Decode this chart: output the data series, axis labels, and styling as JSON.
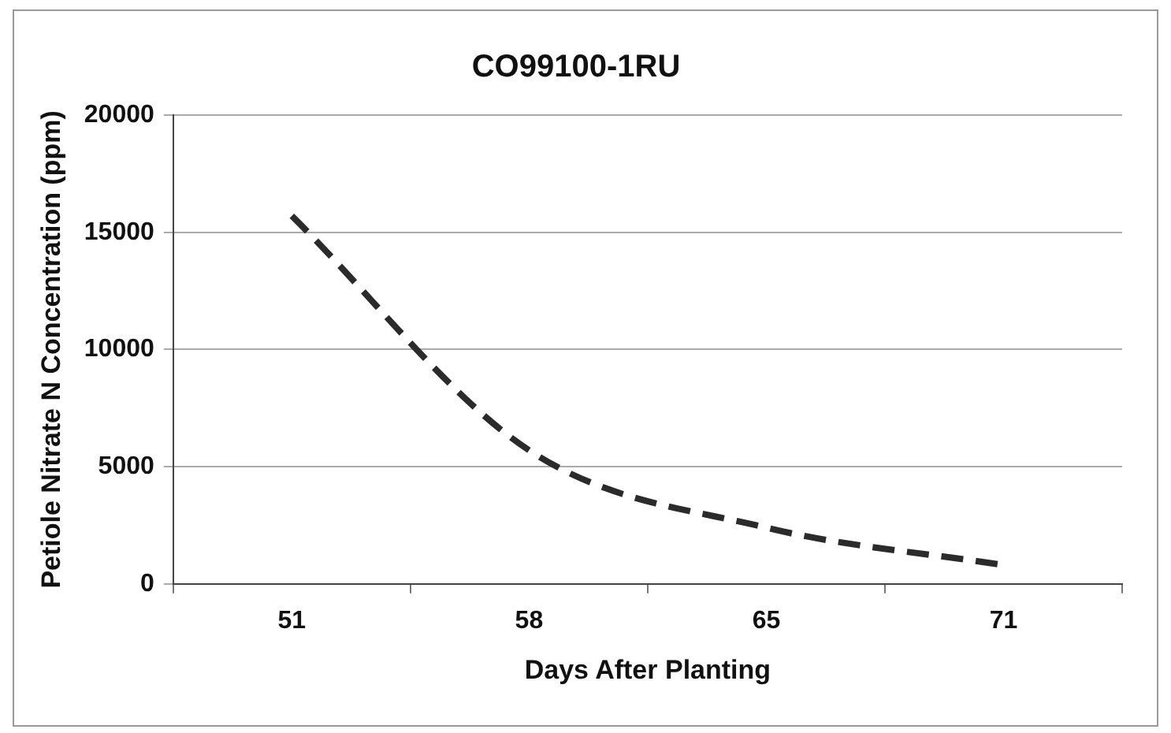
{
  "chart_data": {
    "type": "line",
    "title": "CO99100-1RU",
    "xlabel": "Days After Planting",
    "ylabel": "Petiole Nitrate N Concentration (ppm)",
    "categories": [
      "51",
      "58",
      "65",
      "71"
    ],
    "series": [
      {
        "color": "#2b2b2b",
        "values": [
          15700,
          5700,
          2400,
          800
        ]
      }
    ],
    "ylim": [
      0,
      20000
    ],
    "yticks": [
      0,
      5000,
      10000,
      15000,
      20000
    ],
    "grid": "y",
    "legend": false,
    "marker": "none",
    "line_style": "dashed"
  }
}
